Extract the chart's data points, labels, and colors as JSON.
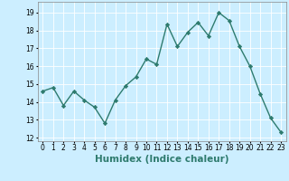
{
  "x": [
    0,
    1,
    2,
    3,
    4,
    5,
    6,
    7,
    8,
    9,
    10,
    11,
    12,
    13,
    14,
    15,
    16,
    17,
    18,
    19,
    20,
    21,
    22,
    23
  ],
  "y": [
    14.6,
    14.8,
    13.8,
    14.6,
    14.1,
    13.7,
    12.8,
    14.1,
    14.9,
    15.4,
    16.4,
    16.1,
    18.35,
    17.1,
    17.9,
    18.45,
    17.7,
    19.0,
    18.55,
    17.1,
    16.0,
    14.45,
    13.1,
    12.3
  ],
  "line_color": "#2e7b6e",
  "marker": "D",
  "markersize": 2.2,
  "linewidth": 1.0,
  "bgcolor": "#cceeff",
  "grid_color": "#ffffff",
  "xlabel": "Humidex (Indice chaleur)",
  "ylim": [
    11.8,
    19.6
  ],
  "xlim": [
    -0.5,
    23.5
  ],
  "yticks": [
    12,
    13,
    14,
    15,
    16,
    17,
    18,
    19
  ],
  "xticks": [
    0,
    1,
    2,
    3,
    4,
    5,
    6,
    7,
    8,
    9,
    10,
    11,
    12,
    13,
    14,
    15,
    16,
    17,
    18,
    19,
    20,
    21,
    22,
    23
  ],
  "tick_fontsize": 5.5,
  "xlabel_fontsize": 7.5,
  "grid_linewidth": 0.6
}
